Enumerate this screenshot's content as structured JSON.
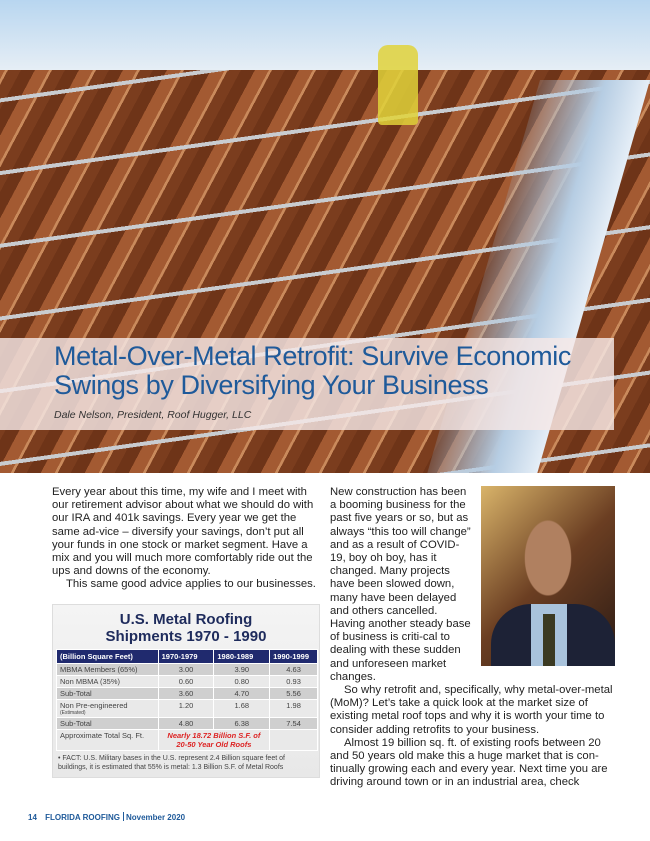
{
  "article": {
    "title": "Metal-Over-Metal Retrofit: Survive Economic Swings by Diversifying Your Business",
    "byline": "Dale Nelson, President, Roof Hugger, LLC",
    "paragraphs": [
      "Every year about this time, my wife and I meet with our retirement advisor about what we should do with our IRA and 401k savings. Every year we get the same ad-vice – diversify your savings, don’t put all your funds in one stock or market segment. Have a mix and you will much more comfortably ride out the ups and downs of the economy.",
      "This same good advice applies to our businesses.",
      "New construction has been a booming business for the past five years or so, but as always “this too will change” and as a result of COVID-19, boy oh boy, has it changed. Many projects have been slowed down, many have been delayed and others cancelled. Having another steady base of business is criti-cal to dealing with these sudden and unforeseen market changes.",
      "So why retrofit and, specifically, why metal-over-metal (MoM)? Let’s take a quick look at the market size of existing metal roof tops and why it is worth your time to consider adding retrofits to your business.",
      "Almost 19 billion sq. ft. of existing roofs between 20 and 50 years old make this a huge market that is con-tinually growing each and every year. Next time you are driving around town or in an industrial area, check"
    ]
  },
  "figure": {
    "title_line1": "U.S. Metal Roofing",
    "title_line2": "Shipments 1970 - 1990",
    "headers": [
      "(Billion Square Feet)",
      "1970-1979",
      "1980-1989",
      "1990-1999"
    ],
    "rows": [
      {
        "label": "MBMA Members (65%)",
        "values": [
          "3.00",
          "3.90",
          "4.63"
        ]
      },
      {
        "label": "Non MBMA (35%)",
        "values": [
          "0.60",
          "0.80",
          "0.93"
        ]
      },
      {
        "label": "Sub-Total",
        "values": [
          "3.60",
          "4.70",
          "5.56"
        ]
      },
      {
        "label": "Non Pre-engineered",
        "sublabel": "(Estimated)",
        "values": [
          "1.20",
          "1.68",
          "1.98"
        ]
      },
      {
        "label": "Sub-Total",
        "values": [
          "4.80",
          "6.38",
          "7.54"
        ]
      }
    ],
    "total_label": "Approximate Total Sq. Ft.",
    "total_note_line1": "Nearly 18.72 Billion S.F. of",
    "total_note_line2": "20-50 Year Old Roofs",
    "fact": "• FACT: U.S. Military bases in the U.S. represent 2.4 Billion square feet of buildings, it is estimated that 55% is metal: 1.3 Billion S.F. of Metal Roofs"
  },
  "footer": {
    "page": "14",
    "magazine": "FLORIDA ROOFING",
    "issue": "November 2020"
  },
  "colors": {
    "title_blue": "#1f5a9a",
    "table_header": "#202a6e",
    "highlight_red": "#dd2222"
  }
}
